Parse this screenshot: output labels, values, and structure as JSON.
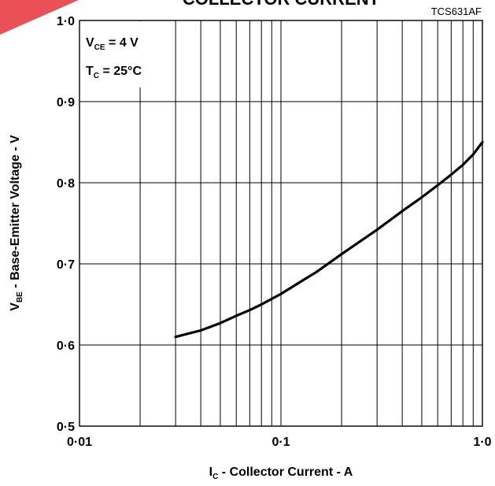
{
  "chart_data": {
    "type": "line",
    "title": "COLLECTOR CURRENT",
    "figure_ref": "TCS631AF",
    "x_scale": "log",
    "xlim": [
      0.01,
      1.0
    ],
    "ylim": [
      0.5,
      1.0
    ],
    "x_ticks": [
      {
        "value": 0.01,
        "label": "0·01"
      },
      {
        "value": 0.1,
        "label": "0·1"
      },
      {
        "value": 1.0,
        "label": "1·0"
      }
    ],
    "y_ticks": [
      {
        "value": 0.5,
        "label": "0·5"
      },
      {
        "value": 0.6,
        "label": "0·6"
      },
      {
        "value": 0.7,
        "label": "0·7"
      },
      {
        "value": 0.8,
        "label": "0·8"
      },
      {
        "value": 0.9,
        "label": "0·9"
      },
      {
        "value": 1.0,
        "label": "1·0"
      }
    ],
    "xlabel": {
      "main": "I",
      "sub": "C",
      "rest": " - Collector Current - A"
    },
    "ylabel": {
      "main": "V",
      "sub": "BE",
      "rest": " - Base-Emitter Voltage - V"
    },
    "annotations": [
      {
        "main": "V",
        "sub": "CE",
        "rest": " = 4 V"
      },
      {
        "main": "T",
        "sub": "C",
        "rest": " = 25°C"
      }
    ],
    "grid": true,
    "series": [
      {
        "x": [
          0.03,
          0.04,
          0.05,
          0.06,
          0.07,
          0.08,
          0.1,
          0.15,
          0.2,
          0.3,
          0.4,
          0.5,
          0.6,
          0.7,
          0.8,
          0.9,
          1.0
        ],
        "y": [
          0.61,
          0.618,
          0.627,
          0.636,
          0.643,
          0.65,
          0.663,
          0.69,
          0.712,
          0.742,
          0.765,
          0.782,
          0.797,
          0.81,
          0.822,
          0.835,
          0.85
        ]
      }
    ],
    "colors": {
      "line": "#000000",
      "grid": "#000000",
      "watermark": "#e8313a"
    }
  }
}
